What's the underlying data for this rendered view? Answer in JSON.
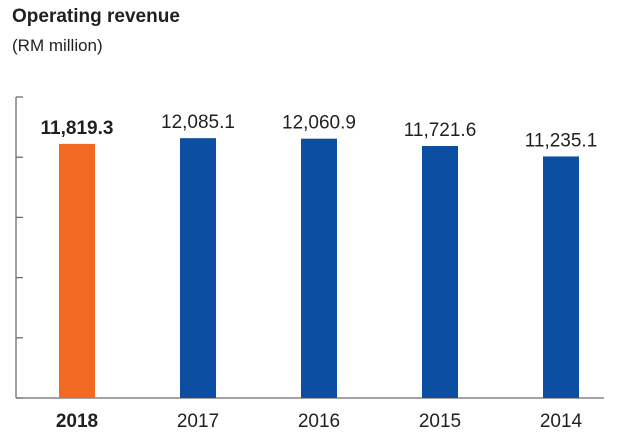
{
  "chart_data": {
    "type": "bar",
    "title": "Operating revenue",
    "subtitle": "(RM million)",
    "categories": [
      "2018",
      "2017",
      "2016",
      "2015",
      "2014"
    ],
    "values": [
      11819.3,
      12085.1,
      12060.9,
      11721.6,
      11235.1
    ],
    "value_labels": [
      "11,819.3",
      "12,085.1",
      "12,060.9",
      "11,721.6",
      "11,235.1"
    ],
    "highlight_index": 0,
    "ylim": [
      0,
      14000
    ],
    "xlabel": "",
    "ylabel": "",
    "grid": false
  },
  "colors": {
    "highlight": "#f26a21",
    "bar": "#0b4ea2",
    "axis": "#6d6e71",
    "text": "#231f20"
  }
}
